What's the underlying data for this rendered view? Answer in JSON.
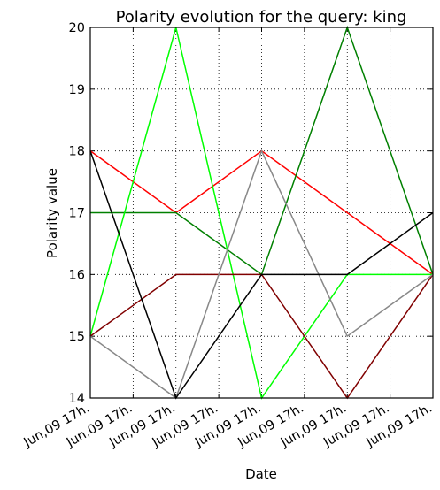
{
  "chart_data": {
    "type": "line",
    "title": "Polarity evolution for the query: king",
    "xlabel": "Date",
    "ylabel": "Polarity value",
    "ylim": [
      14,
      20
    ],
    "yticks": [
      "14",
      "15",
      "16",
      "17",
      "18",
      "19",
      "20"
    ],
    "xticks": [
      "Jun,09 17h.",
      "Jun,09 17h.",
      "Jun,09 17h.",
      "Jun,09 17h.",
      "Jun,09 17h.",
      "Jun,09 17h.",
      "Jun,09 17h.",
      "Jun,09 17h.",
      "Jun,09 17h."
    ],
    "grid": true,
    "legend": "none",
    "x_index": [
      0,
      2,
      4,
      6,
      8
    ],
    "series": [
      {
        "color": "#ff0000",
        "values": [
          18,
          17,
          18,
          17,
          16
        ]
      },
      {
        "color": "#008000",
        "values": [
          17,
          17,
          16,
          20,
          16
        ]
      },
      {
        "color": "#00ff00",
        "values": [
          15,
          20,
          14,
          16,
          16
        ]
      },
      {
        "color": "#800000",
        "values": [
          15,
          16,
          16,
          14,
          16
        ]
      },
      {
        "color": "#888888",
        "values": [
          15,
          14,
          18,
          15,
          16
        ]
      },
      {
        "color": "#000000",
        "values": [
          18,
          14,
          16,
          16,
          17
        ]
      }
    ]
  }
}
